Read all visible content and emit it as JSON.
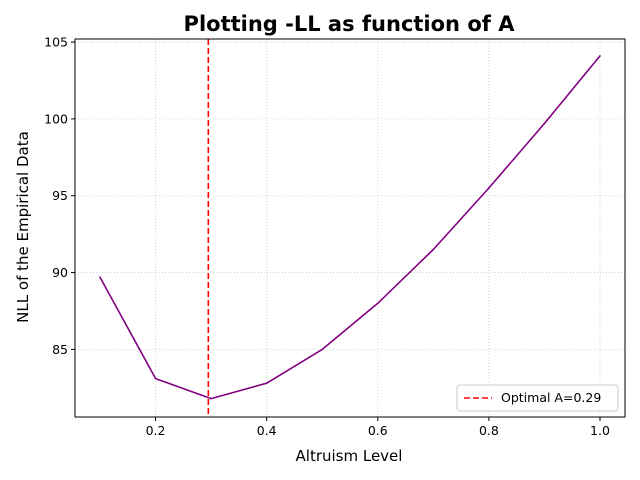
{
  "chart_data": {
    "type": "line",
    "title": "Plotting -LL as function of A",
    "xlabel": "Altruism Level",
    "ylabel": "NLL of the Empirical Data",
    "xlim": [
      0.055,
      1.045
    ],
    "ylim": [
      80.6,
      105.2
    ],
    "xticks": [
      0.2,
      0.4,
      0.6,
      0.8,
      1.0
    ],
    "xtick_labels": [
      "0.2",
      "0.4",
      "0.6",
      "0.8",
      "1.0"
    ],
    "yticks": [
      85,
      90,
      95,
      100,
      105
    ],
    "ytick_labels": [
      "85",
      "90",
      "95",
      "100",
      "105"
    ],
    "grid": true,
    "series": [
      {
        "color": "#800080",
        "style": "solid",
        "x": [
          0.1,
          0.2,
          0.3,
          0.4,
          0.5,
          0.6,
          0.7,
          0.8,
          0.9,
          1.0
        ],
        "y": [
          89.7,
          83.1,
          81.8,
          82.8,
          85.0,
          88.0,
          91.5,
          95.5,
          99.7,
          104.1
        ]
      }
    ],
    "vlines": [
      {
        "x": 0.295,
        "color": "#ff0000",
        "style": "dashed",
        "name": "Optimal A=0.29"
      }
    ],
    "legend": {
      "position": "bottom-right",
      "entries": [
        "Optimal A=0.29"
      ]
    }
  }
}
